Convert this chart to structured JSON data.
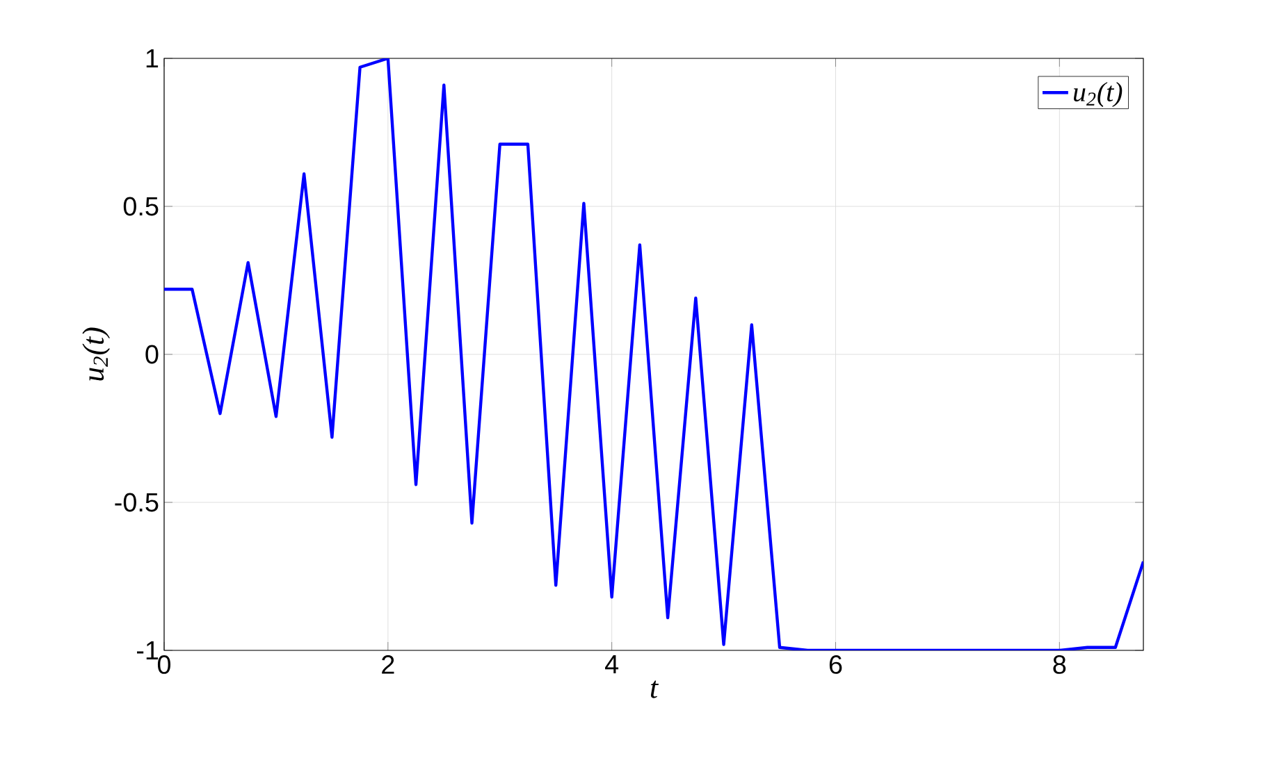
{
  "chart_data": {
    "type": "line",
    "xlabel": "t",
    "ylabel": "u$_{2}$(t)",
    "x": [
      0,
      0.25,
      0.5,
      0.75,
      1,
      1.25,
      1.5,
      1.75,
      2,
      2.25,
      2.5,
      2.75,
      3,
      3.25,
      3.5,
      3.75,
      4,
      4.25,
      4.5,
      4.75,
      5,
      5.25,
      5.5,
      5.75,
      6,
      6.25,
      6.5,
      6.75,
      7,
      7.25,
      7.5,
      7.75,
      8,
      8.25,
      8.5,
      8.75
    ],
    "series": [
      {
        "name": "u$_{2}$(t)",
        "color": "#0000ff",
        "values": [
          0.22,
          0.22,
          -0.2,
          0.31,
          -0.21,
          0.61,
          -0.28,
          0.97,
          1.0,
          -0.44,
          0.91,
          -0.57,
          0.71,
          0.71,
          -0.78,
          0.51,
          -0.82,
          0.37,
          -0.89,
          0.19,
          -0.98,
          0.1,
          -0.99,
          -1,
          -1,
          -1,
          -1,
          -1,
          -1,
          -1,
          -1,
          -1,
          -1,
          -0.99,
          -0.99,
          -0.7
        ]
      }
    ],
    "xlim": [
      0,
      8.75
    ],
    "ylim": [
      -1,
      1
    ],
    "xticks": [
      0,
      2,
      4,
      6,
      8
    ],
    "yticks": [
      -1,
      -0.5,
      0,
      0.5,
      1
    ],
    "grid": true,
    "legend": "top right",
    "marker": "none",
    "line_style": "solid"
  }
}
